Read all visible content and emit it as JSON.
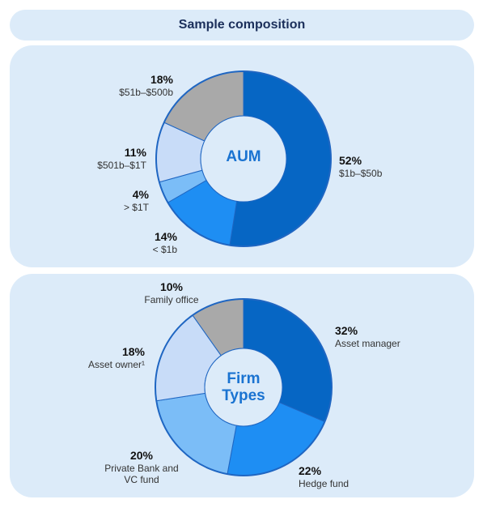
{
  "header": {
    "title": "Sample composition"
  },
  "chart_data": [
    {
      "type": "pie",
      "variant": "donut",
      "center_label": "AUM",
      "slices": [
        {
          "label": "$1b–$50b",
          "pct_label": "52%",
          "value": 52,
          "color": "#0666c4"
        },
        {
          "label": "< $1b",
          "pct_label": "14%",
          "value": 14,
          "color": "#1e8ef3"
        },
        {
          "label": "> $1T",
          "pct_label": "4%",
          "value": 4,
          "color": "#7bbdf7"
        },
        {
          "label": "$501b–$1T",
          "pct_label": "11%",
          "value": 11,
          "color": "#c8dcf8"
        },
        {
          "label": "$51b–$500b",
          "pct_label": "18%",
          "value": 18,
          "color": "#a9a9a9"
        }
      ]
    },
    {
      "type": "pie",
      "variant": "donut",
      "center_label": "Firm Types",
      "slices": [
        {
          "label": "Asset manager",
          "pct_label": "32%",
          "value": 32,
          "color": "#0666c4"
        },
        {
          "label": "Hedge fund",
          "pct_label": "22%",
          "value": 22,
          "color": "#1e8ef3"
        },
        {
          "label": "Private Bank and VC fund",
          "pct_label": "20%",
          "value": 20,
          "color": "#7bbdf7"
        },
        {
          "label": "Asset owner¹",
          "pct_label": "18%",
          "value": 18,
          "color": "#c8dcf8"
        },
        {
          "label": "Family office",
          "pct_label": "10%",
          "value": 10,
          "color": "#a9a9a9"
        }
      ]
    }
  ]
}
